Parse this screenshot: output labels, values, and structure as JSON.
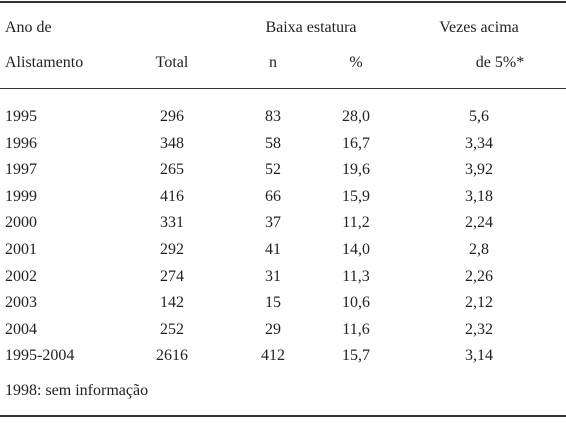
{
  "table": {
    "header": {
      "row1": [
        "Ano de",
        "Baixa estatura",
        "Vezes acima"
      ],
      "row2": [
        "Alistamento",
        "Total",
        "n",
        "%",
        "de 5%*"
      ]
    },
    "rows": [
      [
        "1995",
        "296",
        "83",
        "28,0",
        "5,6"
      ],
      [
        "1996",
        "348",
        "58",
        "16,7",
        "3,34"
      ],
      [
        "1997",
        "265",
        "52",
        "19,6",
        "3,92"
      ],
      [
        "1999",
        "416",
        "66",
        "15,9",
        "3,18"
      ],
      [
        "2000",
        "331",
        "37",
        "11,2",
        "2,24"
      ],
      [
        "2001",
        "292",
        "41",
        "14,0",
        "2,8"
      ],
      [
        "2002",
        "274",
        "31",
        "11,3",
        "2,26"
      ],
      [
        "2003",
        "142",
        "15",
        "10,6",
        "2,12"
      ],
      [
        "2004",
        "252",
        "29",
        "11,6",
        "2,32"
      ],
      [
        "1995-2004",
        "2616",
        "412",
        "15,7",
        "3,14"
      ]
    ],
    "footnote": "1998: sem informação"
  }
}
